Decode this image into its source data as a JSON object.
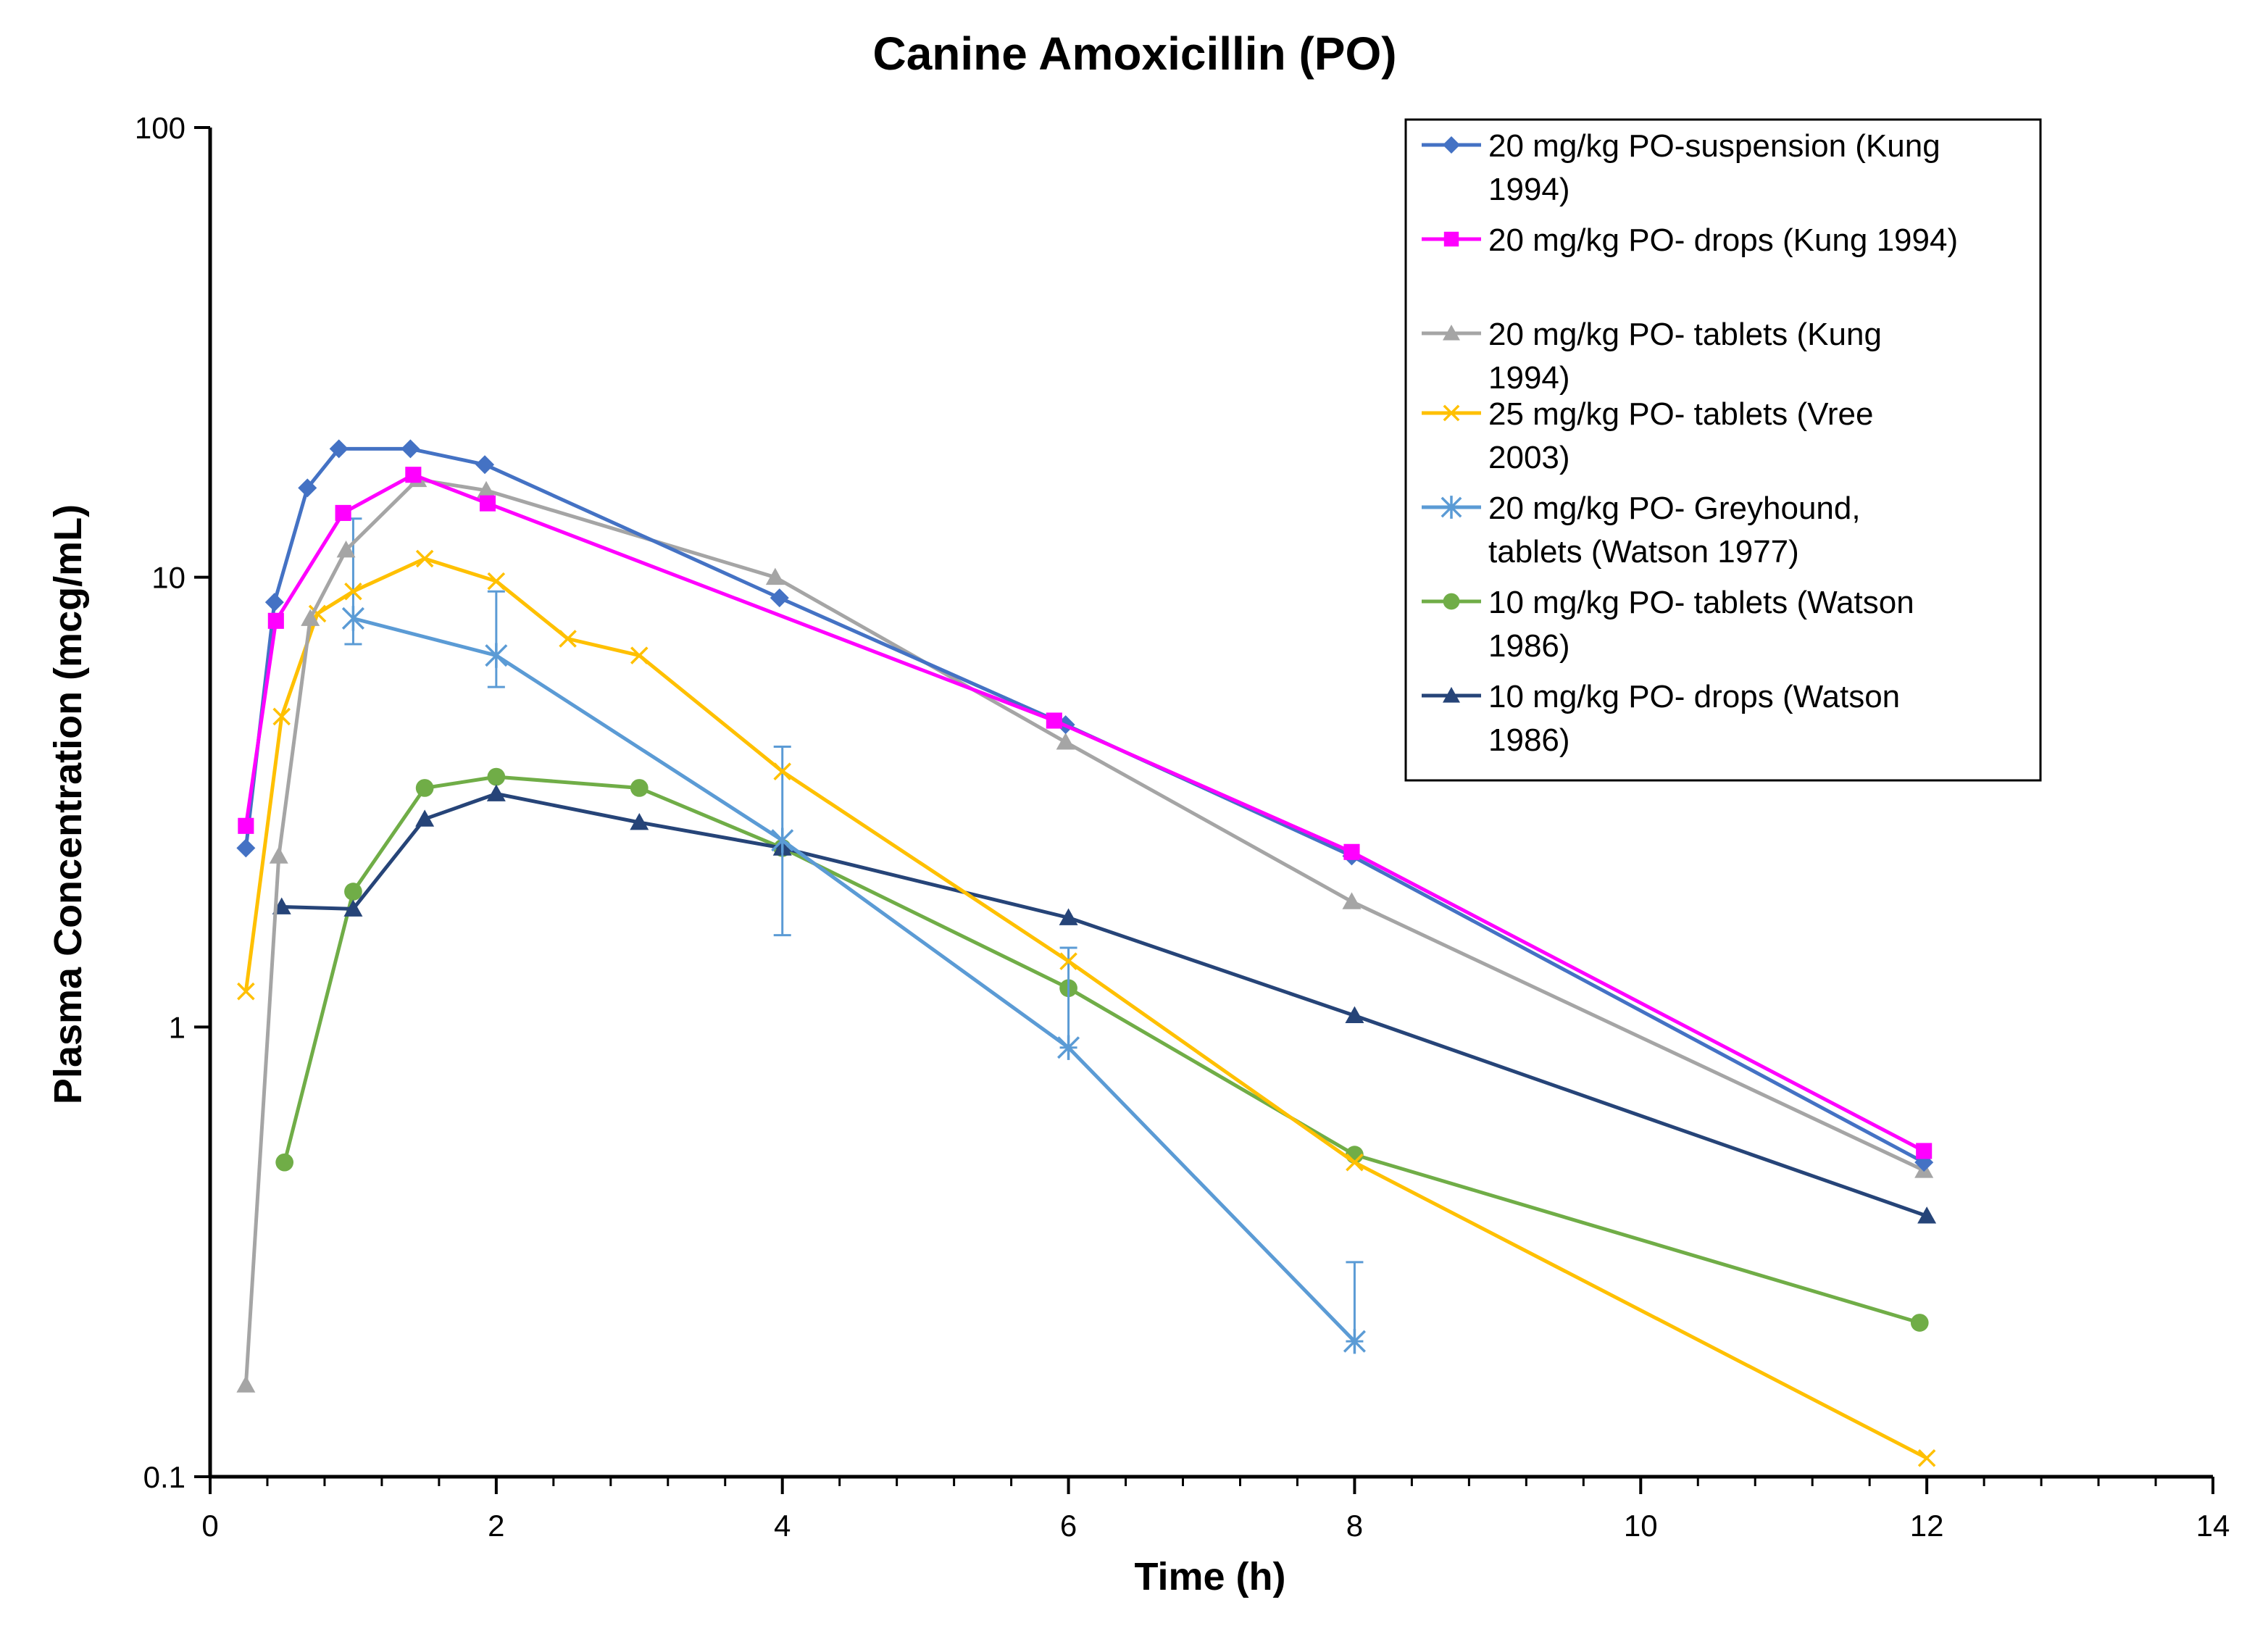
{
  "chart_data": {
    "type": "line",
    "title": "Canine Amoxicillin (PO)",
    "xlabel": "Time (h)",
    "ylabel": "Plasma Concentration (mcg/mL)",
    "xlim": [
      0,
      14
    ],
    "ylim": [
      0.1,
      100
    ],
    "y_scale": "log",
    "grid": false,
    "legend_position": "top-right",
    "x_ticks": [
      0,
      2,
      4,
      6,
      8,
      10,
      12,
      14
    ],
    "x_tick_labels": [
      "0",
      "2",
      "4",
      "6",
      "8",
      "10",
      "12",
      "14"
    ],
    "y_ticks": [
      0.1,
      1,
      10,
      100
    ],
    "y_tick_labels": [
      "0.1",
      "1",
      "10",
      "100"
    ],
    "series": [
      {
        "name": "20 mg/kg PO-suspension (Kung 1994)",
        "legend_lines": [
          "20 mg/kg PO-suspension (Kung",
          "1994)"
        ],
        "color": "#4472C4",
        "marker": "diamond",
        "x": [
          0.25,
          0.45,
          0.68,
          0.9,
          1.4,
          1.92,
          3.98,
          5.98,
          7.98,
          11.98
        ],
        "y": [
          2.5,
          8.8,
          15.8,
          19.3,
          19.3,
          17.8,
          9.0,
          4.7,
          2.4,
          0.5
        ]
      },
      {
        "name": "20 mg/kg PO- drops (Kung 1994)",
        "legend_lines": [
          "20 mg/kg PO- drops (Kung 1994)"
        ],
        "color": "#FF00FF",
        "marker": "square",
        "x": [
          0.25,
          0.46,
          0.93,
          1.42,
          1.94,
          5.9,
          7.98,
          11.98
        ],
        "y": [
          2.8,
          8.0,
          13.9,
          16.9,
          14.6,
          4.8,
          2.45,
          0.53
        ]
      },
      {
        "name": "20 mg/kg PO- tablets (Kung 1994)",
        "legend_lines": [
          "20 mg/kg PO- tablets (Kung",
          "1994)"
        ],
        "color": "#A5A5A5",
        "marker": "triangle",
        "x": [
          0.25,
          0.48,
          0.7,
          0.95,
          1.45,
          1.93,
          3.95,
          5.98,
          7.98,
          11.98
        ],
        "y": [
          0.16,
          2.4,
          8.1,
          11.5,
          16.5,
          15.6,
          10.0,
          4.3,
          1.9,
          0.48
        ]
      },
      {
        "name": "25 mg/kg PO- tablets (Vree 2003)",
        "legend_lines": [
          "25 mg/kg PO- tablets (Vree",
          "2003)"
        ],
        "color": "#FFC000",
        "marker": "x",
        "x": [
          0.25,
          0.5,
          0.75,
          1.0,
          1.5,
          2.0,
          2.5,
          3.0,
          4.0,
          6.0,
          8.0,
          12.0
        ],
        "y": [
          1.2,
          4.9,
          8.3,
          9.3,
          11.0,
          9.8,
          7.3,
          6.7,
          3.7,
          1.4,
          0.5,
          0.11
        ]
      },
      {
        "name": "20 mg/kg PO- Greyhound, tablets (Watson 1977)",
        "legend_lines": [
          "20 mg/kg PO- Greyhound,",
          "tablets (Watson 1977)"
        ],
        "color": "#5B9BD5",
        "marker": "asterisk",
        "x": [
          1.0,
          2.0,
          4.0,
          6.0,
          8.0
        ],
        "y": [
          8.1,
          6.7,
          2.6,
          0.9,
          0.2
        ],
        "error_upper": [
          13.5,
          9.3,
          4.2,
          1.5,
          0.3
        ],
        "error_lower": [
          7.1,
          5.7,
          1.6,
          0.9,
          0.2
        ]
      },
      {
        "name": "10 mg/kg PO- tablets (Watson 1986)",
        "legend_lines": [
          "10 mg/kg PO- tablets (Watson",
          "1986)"
        ],
        "color": "#70AD47",
        "marker": "circle",
        "x": [
          0.52,
          1.0,
          1.5,
          2.0,
          3.0,
          4.0,
          6.0,
          8.0,
          11.95
        ],
        "y": [
          0.5,
          2.0,
          3.4,
          3.6,
          3.4,
          2.5,
          1.22,
          0.52,
          0.22
        ]
      },
      {
        "name": "10 mg/kg PO- drops (Watson 1986)",
        "legend_lines": [
          "10 mg/kg PO- drops (Watson",
          "1986)"
        ],
        "color": "#264478",
        "marker": "triangle",
        "x": [
          0.5,
          1.0,
          1.5,
          2.0,
          3.0,
          4.0,
          6.0,
          8.0,
          12.0
        ],
        "y": [
          1.85,
          1.83,
          2.9,
          3.3,
          2.85,
          2.5,
          1.75,
          1.06,
          0.38
        ]
      }
    ]
  }
}
